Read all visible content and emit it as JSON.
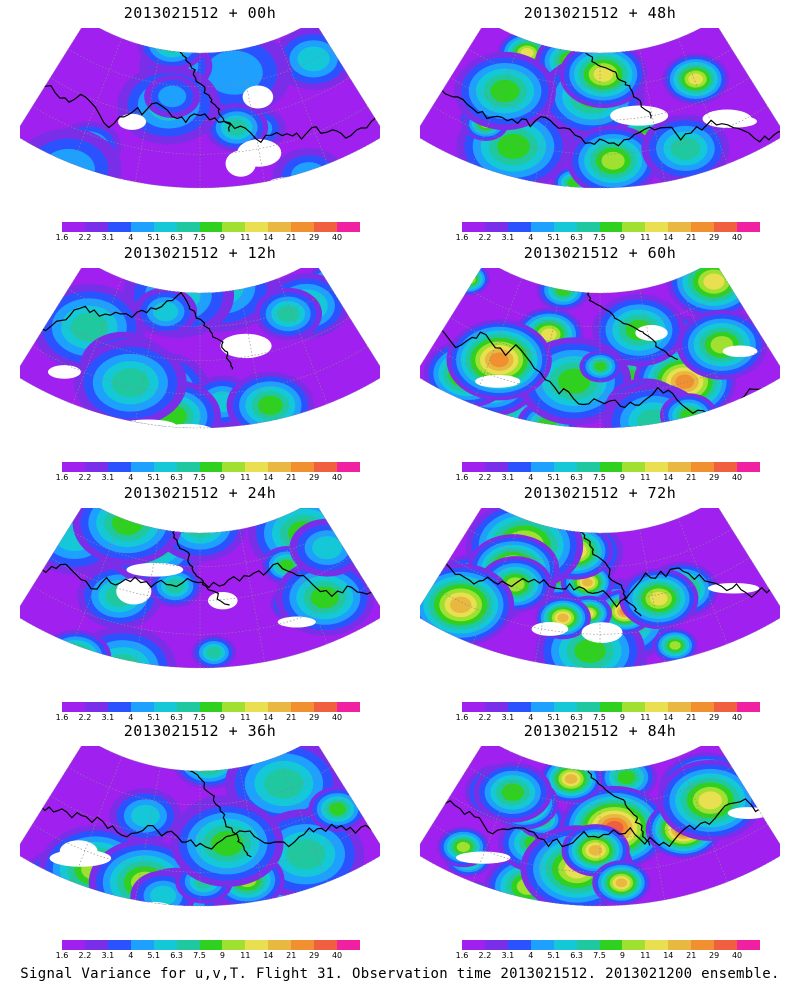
{
  "panels": [
    {
      "title": "2013021512 + 00h",
      "intensity": 0.25
    },
    {
      "title": "2013021512 + 48h",
      "intensity": 0.65
    },
    {
      "title": "2013021512 + 12h",
      "intensity": 0.38
    },
    {
      "title": "2013021512 + 60h",
      "intensity": 0.75
    },
    {
      "title": "2013021512 + 24h",
      "intensity": 0.45
    },
    {
      "title": "2013021512 + 72h",
      "intensity": 0.82
    },
    {
      "title": "2013021512 + 36h",
      "intensity": 0.52
    },
    {
      "title": "2013021512 + 84h",
      "intensity": 0.88
    }
  ],
  "colorbar": {
    "labels": [
      "1.6",
      "2.2",
      "3.1",
      "4",
      "5.1",
      "6.3",
      "7.5",
      "9",
      "11",
      "14",
      "21",
      "29",
      "40"
    ],
    "colors": [
      "#a020f0",
      "#7b2ee8",
      "#2a52ff",
      "#1ea0ff",
      "#14c8d8",
      "#20c8a0",
      "#30d020",
      "#a0e030",
      "#e8e050",
      "#e8b840",
      "#f09030",
      "#f06040",
      "#f020a0"
    ]
  },
  "caption": "Signal Variance for u,v,T. Flight 31. Observation time 2013021512. 2013021200 ensemble."
}
